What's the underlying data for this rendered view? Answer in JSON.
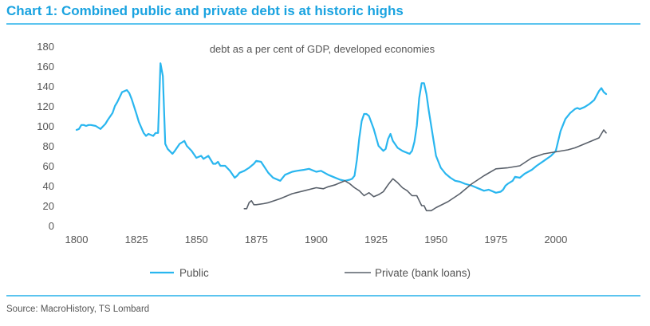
{
  "title": "Chart 1: Combined public and private debt is at historic highs",
  "source": "Source: MacroHistory, TS Lombard",
  "colors": {
    "title": "#1aa3e0",
    "rule": "#5bc4ef",
    "public": "#29b6ef",
    "private": "#59606a",
    "text": "#555555"
  },
  "chart_data": {
    "type": "line",
    "subtitle": "debt as a per cent of GDP, developed economies",
    "xlabel": "",
    "ylabel": "",
    "xlim": [
      1800,
      2021
    ],
    "ylim": [
      0,
      180
    ],
    "xticks": [
      1800,
      1825,
      1850,
      1875,
      1900,
      1925,
      1950,
      1975,
      2000
    ],
    "yticks": [
      0,
      20,
      40,
      60,
      80,
      100,
      120,
      140,
      160,
      180
    ],
    "grid": false,
    "legend": "bottom",
    "series": [
      {
        "name": "Public",
        "color": "#29b6ef",
        "x": [
          1800,
          1801,
          1802,
          1803,
          1804,
          1805,
          1806,
          1808,
          1810,
          1812,
          1813,
          1815,
          1816,
          1817,
          1819,
          1820,
          1821,
          1822,
          1823,
          1825,
          1826,
          1828,
          1829,
          1830,
          1832,
          1833,
          1834,
          1835,
          1836,
          1837,
          1838,
          1840,
          1841,
          1843,
          1845,
          1846,
          1848,
          1850,
          1852,
          1853,
          1855,
          1857,
          1858,
          1859,
          1860,
          1862,
          1864,
          1866,
          1867,
          1868,
          1870,
          1872,
          1874,
          1875,
          1877,
          1880,
          1882,
          1885,
          1887,
          1890,
          1892,
          1895,
          1897,
          1900,
          1902,
          1905,
          1907,
          1910,
          1912,
          1914,
          1915,
          1916,
          1917,
          1918,
          1919,
          1920,
          1921,
          1922,
          1924,
          1926,
          1928,
          1929,
          1930,
          1931,
          1932,
          1934,
          1936,
          1938,
          1939,
          1940,
          1941,
          1942,
          1943,
          1944,
          1945,
          1946,
          1947,
          1949,
          1950,
          1952,
          1954,
          1956,
          1958,
          1960,
          1962,
          1965,
          1968,
          1970,
          1972,
          1975,
          1977,
          1978,
          1979,
          1980,
          1982,
          1983,
          1985,
          1987,
          1990,
          1992,
          1995,
          1998,
          2000,
          2002,
          2004,
          2006,
          2007,
          2008,
          2009,
          2010,
          2012,
          2014,
          2016,
          2018,
          2019,
          2020,
          2021
        ],
        "y": [
          96,
          97,
          101,
          101,
          100,
          101,
          101,
          100,
          97,
          102,
          106,
          113,
          120,
          124,
          134,
          135,
          136,
          133,
          127,
          112,
          104,
          93,
          90,
          92,
          90,
          93,
          93,
          163,
          150,
          82,
          77,
          72,
          75,
          82,
          85,
          80,
          75,
          68,
          70,
          67,
          70,
          62,
          62,
          64,
          60,
          60,
          55,
          48,
          50,
          53,
          55,
          58,
          62,
          65,
          64,
          53,
          48,
          45,
          51,
          54,
          55,
          56,
          57,
          54,
          55,
          51,
          49,
          46,
          45,
          46,
          47,
          50,
          66,
          88,
          105,
          112,
          112,
          110,
          97,
          80,
          75,
          77,
          87,
          92,
          85,
          78,
          75,
          73,
          72,
          75,
          84,
          100,
          128,
          143,
          143,
          132,
          115,
          85,
          70,
          58,
          52,
          48,
          45,
          44,
          42,
          40,
          37,
          35,
          36,
          33,
          34,
          36,
          40,
          42,
          45,
          49,
          48,
          52,
          56,
          60,
          65,
          70,
          75,
          95,
          107,
          113,
          115,
          117,
          118,
          117,
          119,
          122,
          126,
          135,
          138,
          134,
          132
        ]
      },
      {
        "name": "Private (bank loans)",
        "color": "#59606a",
        "x": [
          1870,
          1871,
          1872,
          1873,
          1874,
          1875,
          1878,
          1880,
          1885,
          1890,
          1895,
          1900,
          1903,
          1905,
          1908,
          1910,
          1912,
          1914,
          1916,
          1918,
          1920,
          1922,
          1924,
          1926,
          1928,
          1930,
          1932,
          1934,
          1936,
          1938,
          1940,
          1942,
          1944,
          1945,
          1946,
          1948,
          1950,
          1955,
          1960,
          1965,
          1970,
          1975,
          1980,
          1985,
          1990,
          1995,
          2000,
          2005,
          2008,
          2010,
          2012,
          2015,
          2018,
          2019,
          2020,
          2021
        ],
        "y": [
          17,
          17,
          23,
          25,
          21,
          21,
          22,
          23,
          27,
          32,
          35,
          38,
          37,
          39,
          41,
          43,
          45,
          42,
          38,
          35,
          30,
          33,
          29,
          31,
          34,
          41,
          47,
          43,
          38,
          35,
          30,
          30,
          20,
          20,
          15,
          15,
          18,
          24,
          32,
          42,
          50,
          57,
          58,
          60,
          68,
          72,
          74,
          76,
          78,
          80,
          82,
          85,
          88,
          92,
          96,
          93
        ]
      }
    ]
  }
}
